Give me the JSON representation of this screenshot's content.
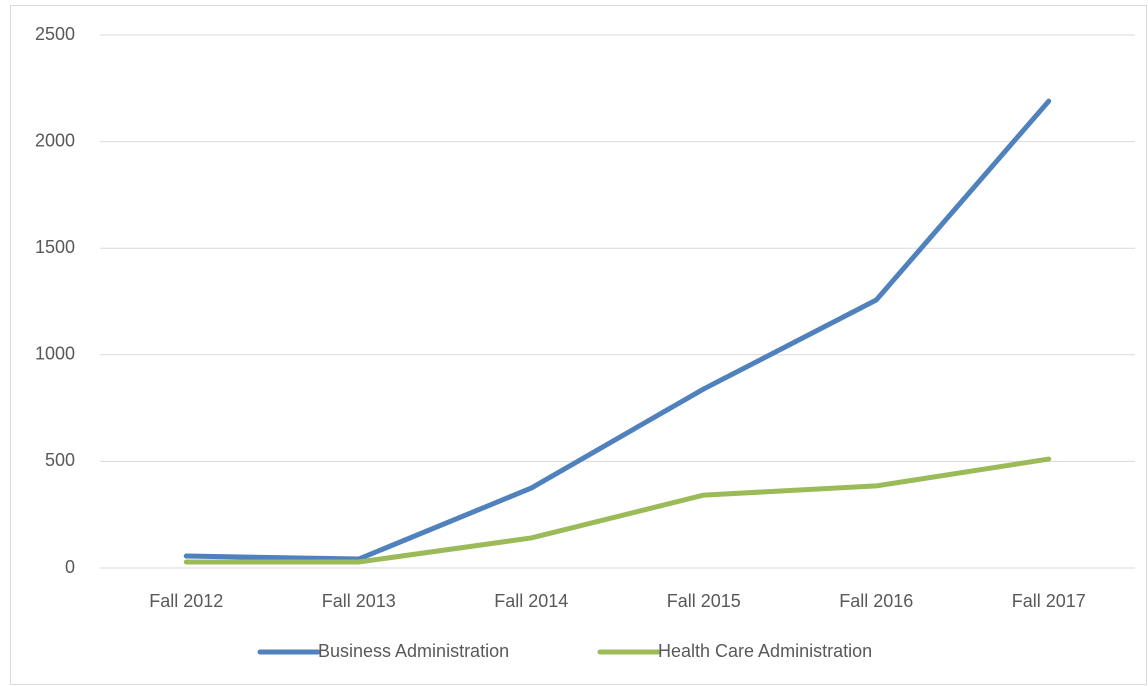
{
  "chart_data": {
    "type": "line",
    "categories": [
      "Fall 2012",
      "Fall 2013",
      "Fall 2014",
      "Fall 2015",
      "Fall 2016",
      "Fall 2017"
    ],
    "series": [
      {
        "name": "Business Administration",
        "color": "#4f81bd",
        "values": [
          56,
          42,
          375,
          840,
          1257,
          2190
        ]
      },
      {
        "name": "Health Care Administration",
        "color": "#9bbb59",
        "values": [
          28,
          28,
          141,
          342,
          385,
          511
        ]
      }
    ],
    "ylim": [
      0,
      2500
    ],
    "yticks": [
      0,
      500,
      1000,
      1500,
      2000,
      2500
    ],
    "grid": true,
    "legend": "bottom"
  }
}
